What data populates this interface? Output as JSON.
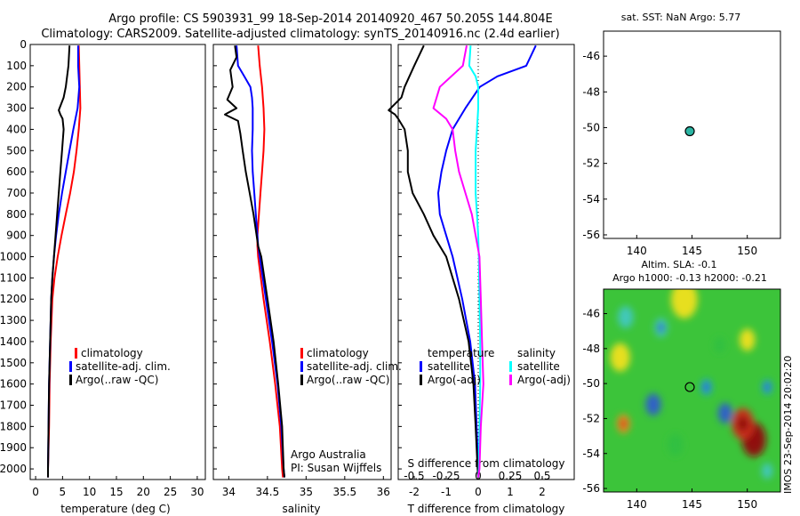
{
  "header": {
    "line1": "Argo profile: CS 5903931_99 18-Sep-2014 20140920_467 50.205S 144.804E",
    "line2": "Climatology: CARS2009. Satellite-adjusted climatology: synTS_20140916.nc (2.4d earlier)"
  },
  "colors": {
    "climatology": "#ff0000",
    "satellite": "#0000ff",
    "argo": "#000000",
    "salinity_sat": "#00ffff",
    "salinity_argo": "#ff00ff"
  },
  "footer": {
    "argo_australia": "Argo Australia",
    "pi": "PI: Susan Wijffels",
    "imos_stamp": "IMOS 23-Sep-2014 20:02:20"
  },
  "chart_data": [
    {
      "type": "line",
      "id": "temperature",
      "xlabel": "temperature (deg C)",
      "xlim": [
        -1,
        31.5
      ],
      "xticks": [
        0,
        5,
        10,
        15,
        20,
        25,
        30
      ],
      "ylim": [
        2050,
        0
      ],
      "yticks": [
        0,
        100,
        200,
        300,
        400,
        500,
        600,
        700,
        800,
        900,
        1000,
        1100,
        1200,
        1300,
        1400,
        1500,
        1600,
        1700,
        1800,
        1900,
        2000
      ],
      "legend": [
        "climatology",
        "satellite-adj. clim.",
        "Argo(..raw -QC)"
      ],
      "series": [
        {
          "name": "climatology",
          "color": "#ff0000",
          "depth": [
            5,
            100,
            200,
            300,
            400,
            500,
            600,
            700,
            800,
            900,
            1000,
            1100,
            1200,
            1400,
            1600,
            1800,
            2000,
            2040
          ],
          "values": [
            8.0,
            8.1,
            8.2,
            8.3,
            8.0,
            7.6,
            7.1,
            6.4,
            5.6,
            4.8,
            4.1,
            3.5,
            3.1,
            2.8,
            2.6,
            2.5,
            2.3,
            2.3
          ]
        },
        {
          "name": "satellite-adj. clim.",
          "color": "#0000ff",
          "depth": [
            5,
            100,
            200,
            300,
            400,
            500,
            600,
            700,
            800,
            900,
            1000,
            1100,
            1200,
            1400,
            1600,
            1800,
            2000,
            2040
          ],
          "values": [
            7.9,
            7.9,
            8.1,
            7.8,
            7.0,
            6.3,
            5.6,
            4.9,
            4.3,
            3.8,
            3.4,
            3.1,
            2.9,
            2.7,
            2.5,
            2.4,
            2.3,
            2.3
          ]
        },
        {
          "name": "Argo(..raw -QC)",
          "color": "#000000",
          "depth": [
            5,
            100,
            200,
            250,
            310,
            330,
            350,
            400,
            500,
            600,
            700,
            800,
            900,
            1000,
            1100,
            1200,
            1400,
            1600,
            1800,
            2000,
            2040
          ],
          "values": [
            6.3,
            6.1,
            5.6,
            5.2,
            4.3,
            4.6,
            5.0,
            5.2,
            4.9,
            4.6,
            4.3,
            4.0,
            3.7,
            3.4,
            3.1,
            2.9,
            2.7,
            2.5,
            2.4,
            2.3,
            2.3
          ]
        }
      ]
    },
    {
      "type": "line",
      "id": "salinity",
      "xlabel": "salinity",
      "xlim": [
        33.8,
        36.1
      ],
      "xticks": [
        34,
        34.5,
        35,
        35.5,
        36
      ],
      "xticklabels": [
        "34",
        "34.5",
        "35",
        "35.5",
        "36"
      ],
      "ylim": [
        2050,
        0
      ],
      "legend": [
        "climatology",
        "satellite-adj. clim.",
        "Argo(..raw -QC)"
      ],
      "series": [
        {
          "name": "climatology",
          "color": "#ff0000",
          "depth": [
            5,
            100,
            200,
            300,
            400,
            500,
            600,
            700,
            800,
            900,
            950,
            1000,
            1200,
            1400,
            1600,
            1800,
            2000,
            2040
          ],
          "values": [
            34.38,
            34.4,
            34.43,
            34.45,
            34.46,
            34.45,
            34.43,
            34.41,
            34.39,
            34.37,
            34.37,
            34.38,
            34.45,
            34.53,
            34.6,
            34.66,
            34.69,
            34.7
          ]
        },
        {
          "name": "satellite-adj. clim.",
          "color": "#0000ff",
          "depth": [
            5,
            100,
            150,
            200,
            250,
            300,
            400,
            500,
            600,
            700,
            800,
            900,
            950,
            1000,
            1200,
            1400,
            1600,
            1800,
            2000,
            2040
          ],
          "values": [
            34.1,
            34.12,
            34.2,
            34.28,
            34.3,
            34.31,
            34.31,
            34.3,
            34.31,
            34.33,
            34.35,
            34.37,
            34.38,
            34.4,
            34.48,
            34.56,
            34.63,
            34.68,
            34.71,
            34.72
          ]
        },
        {
          "name": "Argo(..raw -QC)",
          "color": "#000000",
          "depth": [
            5,
            60,
            120,
            200,
            260,
            300,
            330,
            360,
            420,
            500,
            600,
            700,
            800,
            900,
            950,
            1000,
            1200,
            1400,
            1600,
            1800,
            2000,
            2040
          ],
          "values": [
            34.08,
            34.1,
            34.02,
            34.05,
            33.98,
            34.1,
            33.95,
            34.12,
            34.15,
            34.18,
            34.22,
            34.27,
            34.32,
            34.36,
            34.38,
            34.42,
            34.5,
            34.58,
            34.64,
            34.69,
            34.71,
            34.72
          ]
        }
      ],
      "annotations": [
        "Argo Australia",
        "PI: Susan Wijffels"
      ]
    },
    {
      "type": "line",
      "id": "differences",
      "xlabel": "T difference from climatology",
      "xlabel_top": "S difference from climatology",
      "xlim": [
        -2.5,
        3.0
      ],
      "xticks": [
        -2,
        -1,
        0,
        1,
        2
      ],
      "top_ticks": [
        -0.5,
        -0.25,
        0,
        0.25,
        0.5
      ],
      "legend_temperature": [
        "temperature",
        "satellite",
        "Argo(-adj)"
      ],
      "legend_salinity": [
        "salinity",
        "satellite",
        "Argo(-adj)"
      ],
      "series": [
        {
          "name": "temperature satellite",
          "color": "#0000ff",
          "depth": [
            5,
            100,
            150,
            200,
            300,
            400,
            500,
            600,
            700,
            800,
            900,
            1000,
            1200,
            1400,
            1600,
            1800,
            2000,
            2040
          ],
          "values": [
            1.8,
            1.5,
            0.6,
            0.05,
            -0.4,
            -0.8,
            -1.0,
            -1.15,
            -1.25,
            -1.2,
            -1.0,
            -0.8,
            -0.5,
            -0.25,
            -0.1,
            -0.05,
            0.0,
            0.0
          ]
        },
        {
          "name": "temperature Argo(-adj)",
          "color": "#000000",
          "depth": [
            5,
            100,
            200,
            250,
            310,
            330,
            350,
            400,
            500,
            600,
            700,
            800,
            900,
            1000,
            1200,
            1400,
            1600,
            1800,
            2000,
            2040
          ],
          "values": [
            -1.7,
            -2.0,
            -2.3,
            -2.4,
            -2.8,
            -2.6,
            -2.5,
            -2.3,
            -2.2,
            -2.2,
            -2.05,
            -1.7,
            -1.4,
            -1.0,
            -0.6,
            -0.3,
            -0.15,
            -0.08,
            -0.02,
            0.0
          ]
        },
        {
          "name": "salinity satellite",
          "color": "#00ffff",
          "depth": [
            5,
            100,
            150,
            200,
            300,
            400,
            500,
            600,
            700,
            800,
            900,
            1000,
            1200,
            1400,
            1600,
            1800,
            2000,
            2040
          ],
          "values": [
            -0.06,
            -0.07,
            -0.02,
            0.0,
            0.0,
            -0.01,
            -0.02,
            -0.02,
            -0.02,
            -0.01,
            0.0,
            0.005,
            0.01,
            0.015,
            0.015,
            0.01,
            0.005,
            0.0
          ]
        },
        {
          "name": "salinity Argo(-adj)",
          "color": "#ff00ff",
          "depth": [
            5,
            100,
            200,
            300,
            350,
            400,
            500,
            600,
            700,
            800,
            900,
            1000,
            1200,
            1400,
            1600,
            1800,
            2000,
            2040
          ],
          "values": [
            -0.09,
            -0.12,
            -0.3,
            -0.35,
            -0.25,
            -0.2,
            -0.18,
            -0.15,
            -0.1,
            -0.05,
            -0.02,
            0.01,
            0.02,
            0.03,
            0.04,
            0.02,
            0.01,
            0.0
          ]
        }
      ]
    },
    {
      "type": "scatter",
      "id": "sst-map",
      "title": "sat. SST: NaN Argo: 5.77",
      "xlim": [
        137,
        153
      ],
      "ylim": [
        -56.2,
        -44.6
      ],
      "xticks": [
        140,
        145,
        150
      ],
      "yticks": [
        -46,
        -48,
        -50,
        -52,
        -54,
        -56
      ],
      "point": {
        "lon": 144.8,
        "lat": -50.2
      }
    },
    {
      "type": "heatmap",
      "id": "sla-map",
      "title": "Altim. SLA: -0.1",
      "subtitle": "Argo h1000: -0.13 h2000: -0.21",
      "xlim": [
        137,
        153
      ],
      "ylim": [
        -56.2,
        -44.6
      ],
      "xticks": [
        140,
        145,
        150
      ],
      "yticks": [
        -46,
        -48,
        -50,
        -52,
        -54,
        -56
      ],
      "point": {
        "lon": 144.8,
        "lat": -50.2
      },
      "colormap": [
        "#3060c8",
        "#20a0e0",
        "#40c8c0",
        "#30c040",
        "#a0d830",
        "#f0e020",
        "#f09020",
        "#d03020",
        "#901010"
      ],
      "features": [
        {
          "lon": 150.6,
          "lat": -53.2,
          "value": 1.0,
          "r": 1.1
        },
        {
          "lon": 149.6,
          "lat": -52.3,
          "value": 0.7,
          "r": 1.0
        },
        {
          "lon": 138.8,
          "lat": -52.3,
          "value": 0.55,
          "r": 0.6
        },
        {
          "lon": 141.5,
          "lat": -51.2,
          "value": -0.9,
          "r": 0.7
        },
        {
          "lon": 148.0,
          "lat": -51.7,
          "value": -0.9,
          "r": 0.65
        },
        {
          "lon": 146.3,
          "lat": -50.2,
          "value": -0.7,
          "r": 0.5
        },
        {
          "lon": 151.8,
          "lat": -50.2,
          "value": -0.7,
          "r": 0.45
        },
        {
          "lon": 142.2,
          "lat": -46.8,
          "value": -0.6,
          "r": 0.6
        },
        {
          "lon": 139.0,
          "lat": -46.2,
          "value": -0.4,
          "r": 0.7
        },
        {
          "lon": 143.5,
          "lat": -53.5,
          "value": -0.35,
          "r": 0.7
        },
        {
          "lon": 151.8,
          "lat": -55.0,
          "value": -0.5,
          "r": 0.5
        },
        {
          "lon": 147.5,
          "lat": -47.8,
          "value": -0.3,
          "r": 0.5
        },
        {
          "lon": 144.3,
          "lat": -45.2,
          "value": 0.2,
          "r": 1.2
        },
        {
          "lon": 138.5,
          "lat": -48.5,
          "value": 0.35,
          "r": 0.9
        },
        {
          "lon": 150.0,
          "lat": -47.5,
          "value": 0.35,
          "r": 0.7
        }
      ]
    }
  ]
}
